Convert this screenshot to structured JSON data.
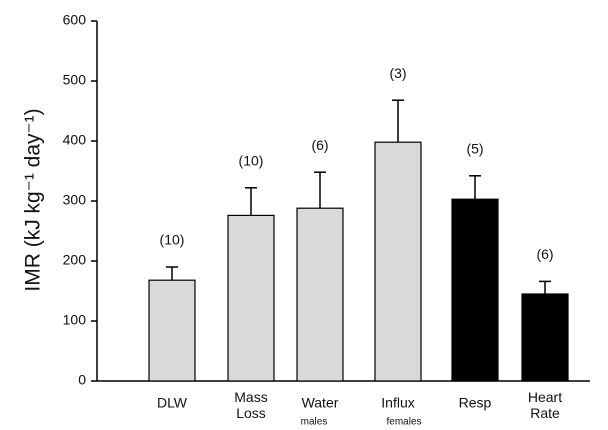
{
  "chart_data": {
    "type": "bar",
    "ylabel": "IMR (kJ kg⁻¹ day⁻¹)",
    "categories": [
      "DLW",
      "Mass Loss",
      "Water",
      "Influx",
      "Resp",
      "Heart Rate"
    ],
    "sublabels": [
      null,
      null,
      "males",
      "females",
      null,
      null
    ],
    "values": [
      168,
      276,
      288,
      398,
      303,
      145
    ],
    "errors": [
      22,
      46,
      60,
      70,
      39,
      21
    ],
    "annotations": [
      "(10)",
      "(10)",
      "(6)",
      "(3)",
      "(5)",
      "(6)"
    ],
    "colors": [
      "#d9d9d9",
      "#d9d9d9",
      "#d9d9d9",
      "#d9d9d9",
      "#000000",
      "#000000"
    ],
    "ylim": [
      0,
      600
    ],
    "yticks": [
      0,
      100,
      200,
      300,
      400,
      500,
      600
    ]
  }
}
